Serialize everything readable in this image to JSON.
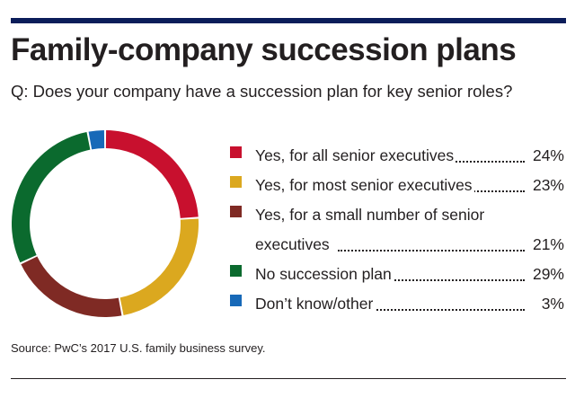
{
  "title": "Family-company succession plans",
  "question": "Q: Does your company have a succession plan for key senior roles?",
  "source": "Source: PwC’s 2017 U.S. family business survey.",
  "colors": {
    "rule": "#0b1d5a",
    "yes_all": "#c8102e",
    "yes_most": "#dba81f",
    "yes_small": "#7f2a24",
    "no_plan": "#0b6a2e",
    "dont_know": "#1769b8"
  },
  "chart_data": {
    "type": "pie",
    "donut": true,
    "title": "Family-company succession plans",
    "categories": [
      "Yes, for all senior executives",
      "Yes, for most senior executives",
      "Yes, for a small number of senior executives",
      "No succession plan",
      "Don’t know/other"
    ],
    "values": [
      24,
      23,
      21,
      29,
      3
    ],
    "value_labels": [
      "24%",
      "23%",
      "21%",
      "29%",
      "3%"
    ],
    "colors": [
      "#c8102e",
      "#dba81f",
      "#7f2a24",
      "#0b6a2e",
      "#1769b8"
    ],
    "legend_position": "right"
  }
}
